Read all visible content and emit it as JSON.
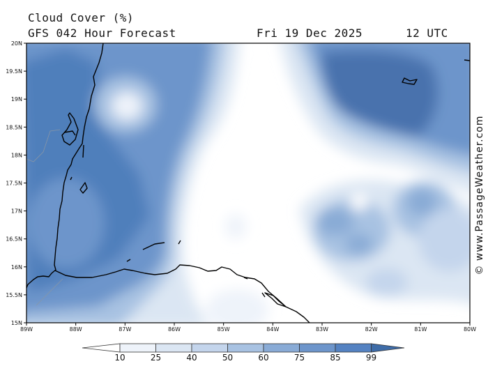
{
  "header": {
    "product": "Cloud Cover (%)",
    "model": "GFS 042 Hour Forecast",
    "date": "Fri 19 Dec 2025",
    "time": "12 UTC"
  },
  "credit": "© www.PassageWeather.com",
  "axes": {
    "lat_labels": [
      "20N",
      "19.5N",
      "19N",
      "18.5N",
      "18N",
      "17.5N",
      "17N",
      "16.5N",
      "16N",
      "15.5N",
      "15N"
    ],
    "lon_labels": [
      "89W",
      "88W",
      "87W",
      "86W",
      "85W",
      "84W",
      "83W",
      "82W",
      "81W",
      "80W"
    ]
  },
  "colorbar": {
    "levels": [
      "10",
      "25",
      "40",
      "50",
      "60",
      "75",
      "85",
      "99"
    ],
    "colors": [
      "#ffffff",
      "#eef3fa",
      "#dbe6f3",
      "#c4d5ec",
      "#a8c2e2",
      "#89abd6",
      "#6d95cb",
      "#5482c2",
      "#3e6ca8"
    ]
  },
  "palette": {
    "deep": "#3e6ca8",
    "mid": "#6d95cb",
    "light": "#a8c2e2",
    "pale": "#dbe6f3",
    "coast": "#000000"
  }
}
